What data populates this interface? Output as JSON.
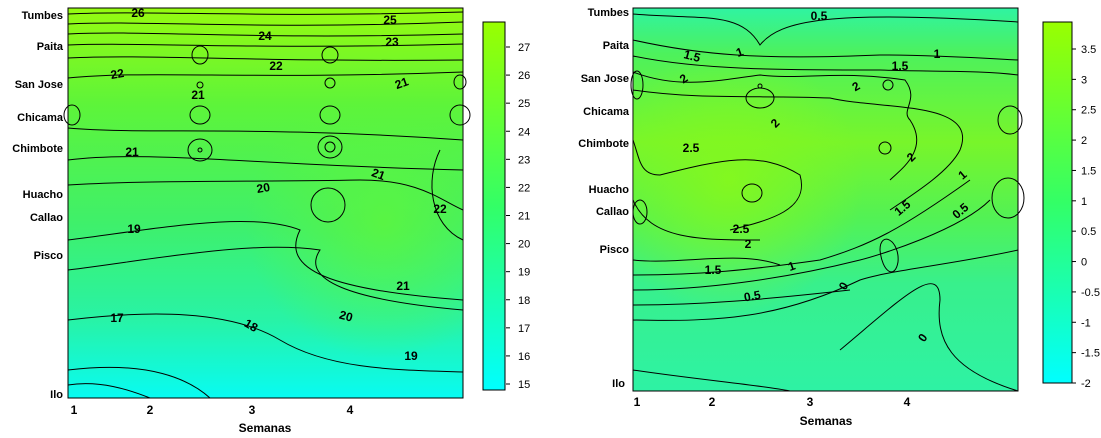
{
  "chart_data": [
    {
      "type": "contour",
      "xlabel": "Semanas",
      "x_ticks": [
        "1",
        "2",
        "3",
        "4"
      ],
      "y_ticks": [
        "Tumbes",
        "Paita",
        "San Jose",
        "Chicama",
        "Chimbote",
        "Huacho",
        "Callao",
        "Pisco",
        "Ilo"
      ],
      "colorbar": {
        "ticks": [
          "27",
          "26",
          "25",
          "24",
          "23",
          "22",
          "21",
          "20",
          "19",
          "18",
          "17",
          "16",
          "15"
        ],
        "range": [
          15,
          27.5
        ],
        "color_high": "#99ff00",
        "color_low": "#00ffff"
      },
      "contour_labels": [
        "26",
        "25",
        "24",
        "23",
        "22",
        "22",
        "21",
        "21",
        "21",
        "21",
        "20",
        "22",
        "19",
        "21",
        "17",
        "18",
        "20",
        "19"
      ]
    },
    {
      "type": "contour",
      "xlabel": "Semanas",
      "x_ticks": [
        "1",
        "2",
        "3",
        "4"
      ],
      "y_ticks": [
        "Tumbes",
        "Paita",
        "San Jose",
        "Chicama",
        "Chimbote",
        "Huacho",
        "Callao",
        "Pisco",
        "Ilo"
      ],
      "colorbar": {
        "ticks": [
          "3.5",
          "3",
          "2.5",
          "2",
          "1.5",
          "1",
          "0.5",
          "0",
          "-0.5",
          "-1",
          "-1.5",
          "-2"
        ],
        "range": [
          -2,
          4
        ],
        "color_high": "#99ff00",
        "color_low": "#00ffff"
      },
      "contour_labels": [
        "0.5",
        "1.5",
        "1",
        "1.5",
        "1",
        "2",
        "2",
        "2",
        "2.5",
        "2",
        "1",
        "1.5",
        "0.5",
        "2.5",
        "2",
        "1.5",
        "1",
        "0.5",
        "0",
        "0"
      ]
    }
  ]
}
